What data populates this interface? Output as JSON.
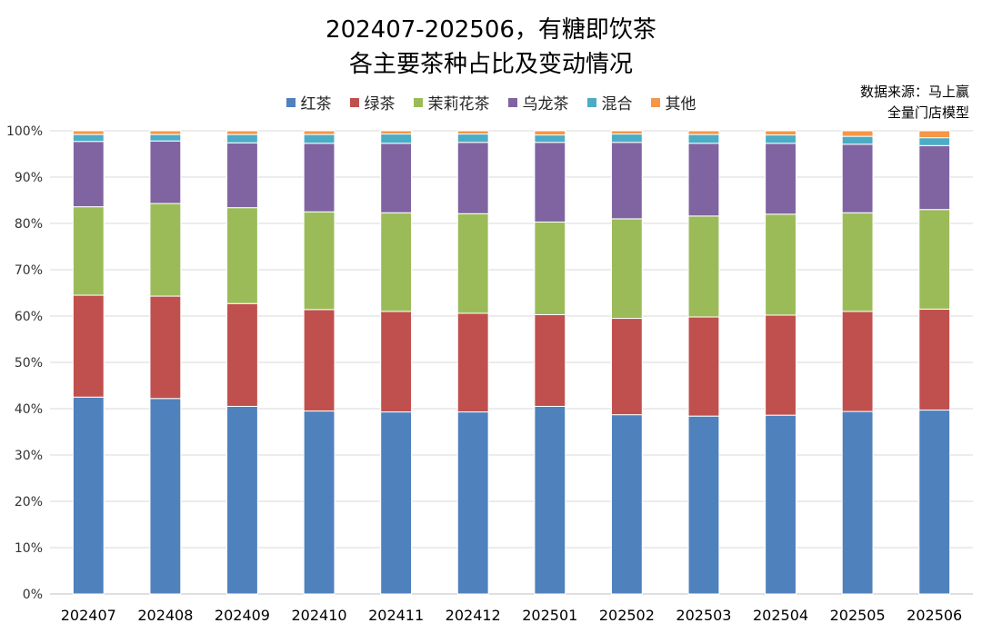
{
  "title_line1": "202407-202506，有糖即饮茶",
  "title_line2": "各主要茶种占比及变动情况",
  "source_line1": "数据来源：马上赢",
  "source_line2": "全量门店模型",
  "chart_data": {
    "type": "bar",
    "stacked": true,
    "percent": true,
    "categories": [
      "202407",
      "202408",
      "202409",
      "202410",
      "202411",
      "202412",
      "202501",
      "202502",
      "202503",
      "202504",
      "202505",
      "202506"
    ],
    "series": [
      {
        "name": "红茶",
        "color": "#4f81bd",
        "values": [
          42.5,
          42.2,
          40.5,
          39.5,
          39.3,
          39.3,
          40.5,
          38.7,
          38.4,
          38.6,
          39.4,
          39.7
        ]
      },
      {
        "name": "绿茶",
        "color": "#c0504d",
        "values": [
          22.0,
          22.1,
          22.2,
          21.9,
          21.7,
          21.3,
          19.8,
          20.8,
          21.4,
          21.6,
          21.6,
          21.8
        ]
      },
      {
        "name": "茉莉花茶",
        "color": "#9bbb59",
        "values": [
          19.1,
          20.0,
          20.7,
          21.1,
          21.3,
          21.5,
          20.0,
          21.5,
          21.8,
          21.8,
          21.3,
          21.5
        ]
      },
      {
        "name": "乌龙茶",
        "color": "#8064a2",
        "values": [
          14.1,
          13.5,
          14.0,
          14.8,
          15.0,
          15.4,
          17.2,
          16.5,
          15.7,
          15.3,
          14.8,
          13.8
        ]
      },
      {
        "name": "混合",
        "color": "#4bacc6",
        "values": [
          1.5,
          1.4,
          1.8,
          1.9,
          2.0,
          1.8,
          1.6,
          1.8,
          1.9,
          1.8,
          1.7,
          1.7
        ]
      },
      {
        "name": "其他",
        "color": "#f79646",
        "values": [
          0.8,
          0.8,
          0.8,
          0.8,
          0.7,
          0.7,
          0.9,
          0.7,
          0.8,
          0.9,
          1.2,
          1.5
        ]
      }
    ],
    "y_ticks": [
      "0%",
      "10%",
      "20%",
      "30%",
      "40%",
      "50%",
      "60%",
      "70%",
      "80%",
      "90%",
      "100%"
    ],
    "ylim": [
      0,
      100
    ],
    "grid": true,
    "legend_position": "top"
  }
}
